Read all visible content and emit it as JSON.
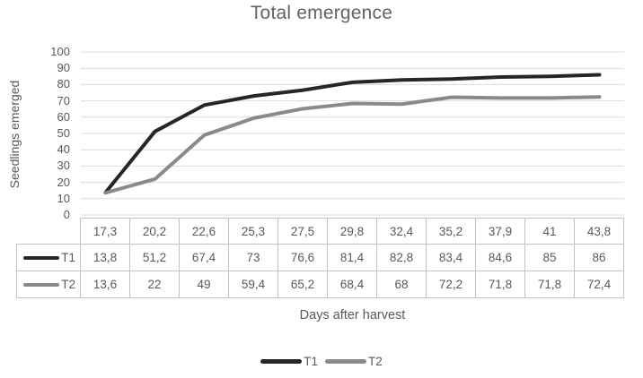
{
  "figure": {
    "title": "Total emergence"
  },
  "y_axis": {
    "label": "Seedlings emerged",
    "ticks": [
      "100",
      "90",
      "80",
      "70",
      "60",
      "50",
      "40",
      "30",
      "20",
      "10",
      "0"
    ]
  },
  "x_axis": {
    "label": "Days after harvest"
  },
  "legend": {
    "items": [
      {
        "label": "T1",
        "color": "#262626"
      },
      {
        "label": "T2",
        "color": "#8a8a8a"
      }
    ]
  },
  "table": {
    "categories": [
      "17,3",
      "20,2",
      "22,6",
      "25,3",
      "27,5",
      "29,8",
      "32,4",
      "35,2",
      "37,9",
      "41",
      "43,8"
    ],
    "rows": [
      {
        "label": "T1",
        "color": "#262626",
        "values": [
          "13,8",
          "51,2",
          "67,4",
          "73",
          "76,6",
          "81,4",
          "82,8",
          "83,4",
          "84,6",
          "85",
          "86"
        ]
      },
      {
        "label": "T2",
        "color": "#8a8a8a",
        "values": [
          "13,6",
          "22",
          "49",
          "59,4",
          "65,2",
          "68,4",
          "68",
          "72,2",
          "71,8",
          "71,8",
          "72,4"
        ]
      }
    ]
  },
  "chart_data": {
    "type": "line",
    "title": "Total emergence",
    "xlabel": "Days after harvest",
    "ylabel": "Seedlings emerged",
    "categories": [
      17.3,
      20.2,
      22.6,
      25.3,
      27.5,
      29.8,
      32.4,
      35.2,
      37.9,
      41,
      43.8
    ],
    "series": [
      {
        "name": "T1",
        "color": "#262626",
        "values": [
          13.8,
          51.2,
          67.4,
          73,
          76.6,
          81.4,
          82.8,
          83.4,
          84.6,
          85,
          86
        ]
      },
      {
        "name": "T2",
        "color": "#8a8a8a",
        "values": [
          13.6,
          22,
          49,
          59.4,
          65.2,
          68.4,
          68,
          72.2,
          71.8,
          71.8,
          72.4
        ]
      }
    ],
    "ylim": [
      0,
      100
    ],
    "ytick_step": 10,
    "grid": true,
    "gridline_color": "#dcdcdc",
    "legend_position": "bottom",
    "data_table_shown": true
  },
  "colors": {
    "text": "#595959",
    "table_border": "#c3c3c3"
  }
}
